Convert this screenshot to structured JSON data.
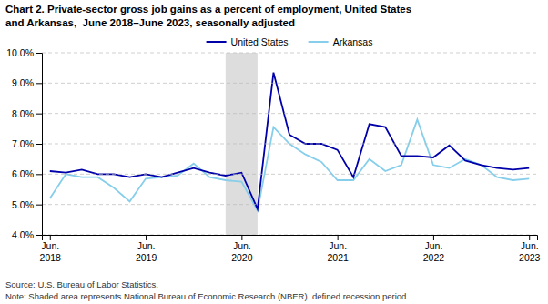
{
  "chart_data": {
    "type": "line",
    "title": "Chart 2. Private-sector gross job gains as a percent of employment, United States\nand Arkansas,  June 2018–June 2023, seasonally adjusted",
    "annotations": [
      "Source: U.S. Bureau of Labor Statistics.\nNote: Shaded area represents National Bureau of Economic Research (NBER)  defined recession period."
    ],
    "categories": [
      "Jun.\n2018",
      null,
      null,
      null,
      null,
      null,
      "Jun.\n2019",
      null,
      null,
      null,
      null,
      null,
      "Jun.\n2020",
      null,
      null,
      null,
      null,
      null,
      "Jun.\n2021",
      null,
      null,
      null,
      null,
      null,
      "Jun.\n2022",
      null,
      null,
      null,
      null,
      null,
      "Jun.\n2023"
    ],
    "series": [
      {
        "name": "United States",
        "color": "#0000AA",
        "values": [
          6.1,
          6.05,
          6.15,
          6.0,
          6.0,
          5.9,
          6.0,
          5.9,
          6.05,
          6.2,
          6.05,
          5.95,
          6.05,
          4.85,
          9.35,
          7.3,
          7.0,
          7.0,
          6.8,
          5.9,
          7.65,
          7.55,
          6.6,
          6.6,
          6.55,
          6.95,
          6.45,
          6.3,
          6.2,
          6.15,
          6.2
        ]
      },
      {
        "name": "Arkansas",
        "color": "#87CEEB",
        "values": [
          5.2,
          6.0,
          5.9,
          5.9,
          5.55,
          5.1,
          5.85,
          5.9,
          5.95,
          6.35,
          5.9,
          5.8,
          5.75,
          4.8,
          7.55,
          7.0,
          6.65,
          6.4,
          5.8,
          5.8,
          6.5,
          6.1,
          6.3,
          7.8,
          6.3,
          6.2,
          6.5,
          6.3,
          5.9,
          5.8,
          5.85
        ]
      }
    ],
    "shaded_span": {
      "start": 11,
      "end": 13,
      "color": "#DDDDDD"
    },
    "ylim": [
      4.0,
      10.0
    ],
    "yticks": [
      {
        "value": 4.0,
        "label": "4.0%"
      },
      {
        "value": 5.0,
        "label": "5.0%"
      },
      {
        "value": 6.0,
        "label": "6.0%"
      },
      {
        "value": 7.0,
        "label": "7.0%"
      },
      {
        "value": 8.0,
        "label": "8.0%"
      },
      {
        "value": 9.0,
        "label": "9.0%"
      },
      {
        "value": 10.0,
        "label": "10.0%"
      }
    ],
    "grid": true,
    "legend": "top"
  }
}
